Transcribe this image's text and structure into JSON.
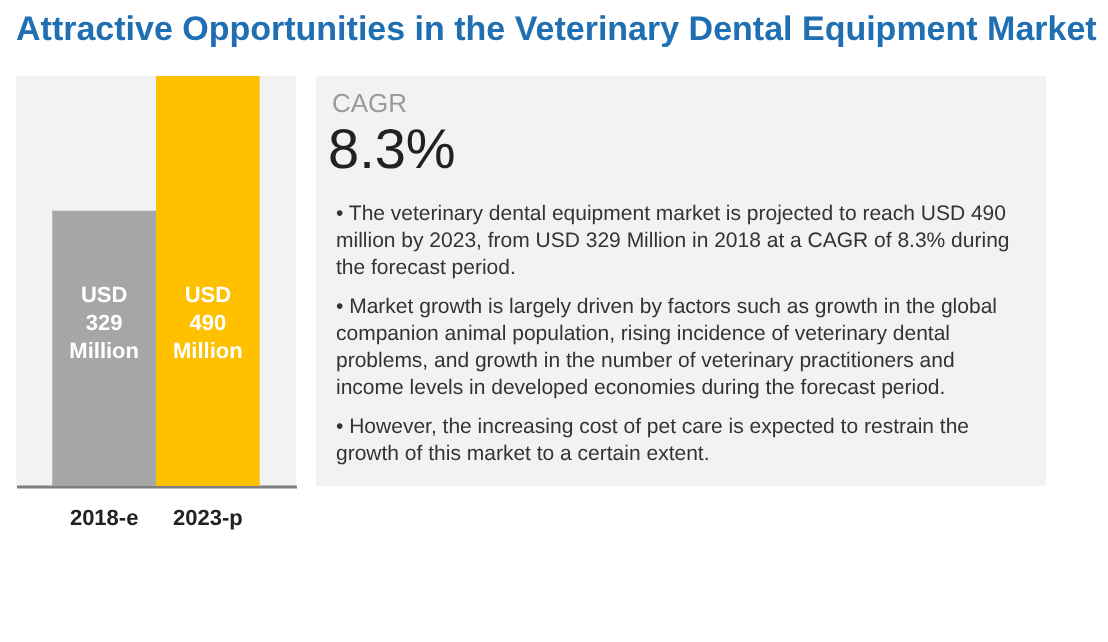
{
  "chart_data": {
    "type": "bar",
    "title": "Attractive Opportunities in the Veterinary Dental Equipment Market",
    "categories": [
      "2018-e",
      "2023-p"
    ],
    "values": [
      329,
      490
    ],
    "colors": [
      "#a6a6a6",
      "#ffc000"
    ],
    "value_labels": [
      "USD 329 Million",
      "USD 490 Million"
    ],
    "annotations": [
      "CAGR",
      "8.3%",
      "• The veterinary dental equipment market is projected to reach USD 490 million by 2023, from USD 329 Million in 2018 at a CAGR of 8.3% during the forecast period.",
      "• Market growth is largely driven by factors such as growth in the global companion animal population, rising incidence of veterinary dental problems, and growth in the number of veterinary practitioners and income levels in developed economies during the forecast period.",
      "• However, the increasing cost of pet care is expected to restrain the growth of this market to a certain extent."
    ],
    "grid": false,
    "legend": false
  }
}
